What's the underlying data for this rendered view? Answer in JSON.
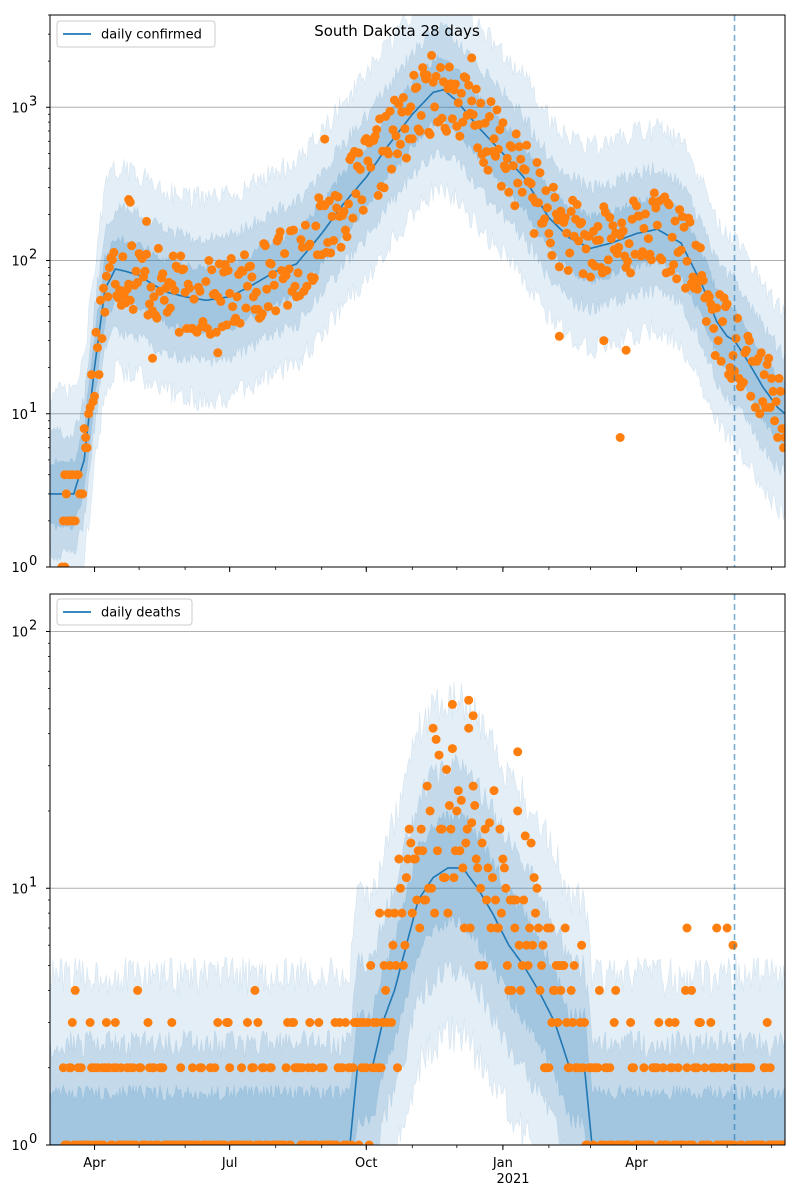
{
  "colors": {
    "band": "#1f77b4",
    "line": "#1f77b4",
    "point": "#ff7f0e",
    "grid": "#b0b0b0",
    "axis": "#000000"
  },
  "chart_data": [
    {
      "type": "line",
      "title": "South Dakota 28 days",
      "yscale": "log",
      "ylim": [
        1,
        4000
      ],
      "xlim": [
        "2020-03-02",
        "2021-07-10"
      ],
      "forecast_start": "2021-06-06",
      "legend": {
        "label": "daily confirmed",
        "placement": "top-left"
      },
      "y_ticks": [
        {
          "value": 1,
          "base": "10",
          "exp": "0"
        },
        {
          "value": 10,
          "base": "10",
          "exp": "1"
        },
        {
          "value": 100,
          "base": "10",
          "exp": "2"
        },
        {
          "value": 1000,
          "base": "10",
          "exp": "3"
        }
      ],
      "grid": "horizontal",
      "curve": [
        [
          "2020-03-02",
          3
        ],
        [
          "2020-03-10",
          3
        ],
        [
          "2020-03-18",
          3
        ],
        [
          "2020-03-25",
          5
        ],
        [
          "2020-04-01",
          20
        ],
        [
          "2020-04-08",
          65
        ],
        [
          "2020-04-15",
          88
        ],
        [
          "2020-04-22",
          85
        ],
        [
          "2020-05-01",
          80
        ],
        [
          "2020-05-10",
          70
        ],
        [
          "2020-05-20",
          62
        ],
        [
          "2020-06-01",
          58
        ],
        [
          "2020-06-15",
          55
        ],
        [
          "2020-07-01",
          58
        ],
        [
          "2020-07-15",
          68
        ],
        [
          "2020-08-01",
          85
        ],
        [
          "2020-08-15",
          95
        ],
        [
          "2020-09-01",
          150
        ],
        [
          "2020-09-15",
          230
        ],
        [
          "2020-10-01",
          350
        ],
        [
          "2020-10-15",
          550
        ],
        [
          "2020-11-01",
          900
        ],
        [
          "2020-11-15",
          1250
        ],
        [
          "2020-11-22",
          1300
        ],
        [
          "2020-12-01",
          1100
        ],
        [
          "2020-12-15",
          750
        ],
        [
          "2021-01-01",
          500
        ],
        [
          "2021-01-15",
          350
        ],
        [
          "2021-02-01",
          190
        ],
        [
          "2021-02-15",
          140
        ],
        [
          "2021-03-01",
          120
        ],
        [
          "2021-03-15",
          130
        ],
        [
          "2021-04-01",
          150
        ],
        [
          "2021-04-15",
          160
        ],
        [
          "2021-05-01",
          130
        ],
        [
          "2021-05-15",
          70
        ],
        [
          "2021-05-25",
          40
        ],
        [
          "2021-06-01",
          32
        ],
        [
          "2021-06-06",
          30
        ],
        [
          "2021-06-15",
          22
        ],
        [
          "2021-06-25",
          15
        ],
        [
          "2021-07-05",
          11
        ],
        [
          "2021-07-10",
          10
        ]
      ],
      "point_count": 496,
      "point_seed": 17,
      "outliers": [
        [
          "2020-04-24",
          250
        ],
        [
          "2020-04-25",
          240
        ],
        [
          "2020-05-06",
          180
        ],
        [
          "2020-09-03",
          620
        ],
        [
          "2021-03-21",
          7
        ],
        [
          "2021-03-10",
          30
        ],
        [
          "2021-02-08",
          32
        ],
        [
          "2021-03-25",
          26
        ],
        [
          "2020-12-11",
          2100
        ],
        [
          "2020-03-10",
          1
        ],
        [
          "2020-03-12",
          1
        ],
        [
          "2020-03-14",
          2
        ],
        [
          "2020-03-26",
          7
        ],
        [
          "2020-06-23",
          25
        ],
        [
          "2020-05-10",
          23
        ]
      ]
    },
    {
      "type": "line",
      "yscale": "log",
      "ylim": [
        1,
        140
      ],
      "xlim": [
        "2020-03-02",
        "2021-07-10"
      ],
      "forecast_start": "2021-06-06",
      "legend": {
        "label": "daily deaths",
        "placement": "top-left"
      },
      "y_ticks": [
        {
          "value": 10,
          "base": "10",
          "exp": "1"
        },
        {
          "value": 100,
          "base": "10",
          "exp": "2"
        },
        {
          "value": 1,
          "base": "10",
          "exp": "0"
        }
      ],
      "grid": "horizontal",
      "x_ticks": [
        {
          "date": "2020-04-01",
          "label": "Apr"
        },
        {
          "date": "2020-07-01",
          "label": "Jul"
        },
        {
          "date": "2020-10-01",
          "label": "Oct"
        },
        {
          "date": "2021-01-01",
          "label": "Jan"
        },
        {
          "date": "2021-04-01",
          "label": "Apr"
        }
      ],
      "year_label": "2021",
      "curve": [
        [
          "2020-03-02",
          1
        ],
        [
          "2020-09-20",
          1
        ],
        [
          "2020-09-25",
          2
        ],
        [
          "2020-10-05",
          2
        ],
        [
          "2020-10-12",
          3
        ],
        [
          "2020-10-20",
          4
        ],
        [
          "2020-10-28",
          6
        ],
        [
          "2020-11-05",
          9
        ],
        [
          "2020-11-15",
          11
        ],
        [
          "2020-11-25",
          12
        ],
        [
          "2020-12-05",
          12
        ],
        [
          "2020-12-15",
          10
        ],
        [
          "2020-12-25",
          8
        ],
        [
          "2021-01-05",
          6
        ],
        [
          "2021-01-15",
          5
        ],
        [
          "2021-01-25",
          4
        ],
        [
          "2021-02-05",
          3
        ],
        [
          "2021-02-15",
          2
        ],
        [
          "2021-02-25",
          2
        ],
        [
          "2021-03-02",
          1
        ],
        [
          "2021-07-10",
          1
        ]
      ],
      "point_count": 496,
      "point_seed": 41,
      "outliers": [
        [
          "2020-12-09",
          54
        ],
        [
          "2020-11-28",
          52
        ],
        [
          "2020-12-12",
          47
        ],
        [
          "2021-01-11",
          34
        ],
        [
          "2021-05-05",
          7
        ],
        [
          "2021-05-25",
          7
        ],
        [
          "2021-06-01",
          7
        ],
        [
          "2021-06-05",
          6
        ]
      ]
    }
  ]
}
